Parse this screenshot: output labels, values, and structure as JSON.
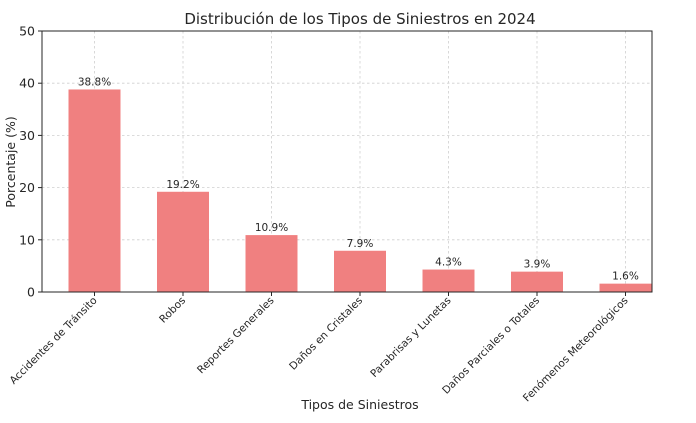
{
  "chart_data": {
    "type": "bar",
    "title": "Distribución de los Tipos de Siniestros en 2024",
    "xlabel": "Tipos de Siniestros",
    "ylabel": "Porcentaje (%)",
    "categories": [
      "Accidentes de Tránsito",
      "Robos",
      "Reportes Generales",
      "Daños en Cristales",
      "Parabrisas y Lunetas",
      "Daños Parciales o Totales",
      "Fenómenos Meteorológicos"
    ],
    "values": [
      38.8,
      19.2,
      10.9,
      7.9,
      4.3,
      3.9,
      1.6
    ],
    "data_labels": [
      "38.8%",
      "19.2%",
      "10.9%",
      "7.9%",
      "4.3%",
      "3.9%",
      "1.6%"
    ],
    "ylim": [
      0,
      50
    ],
    "yticks": [
      0,
      10,
      20,
      30,
      40,
      50
    ],
    "grid": true,
    "bar_color": "#f08080"
  }
}
